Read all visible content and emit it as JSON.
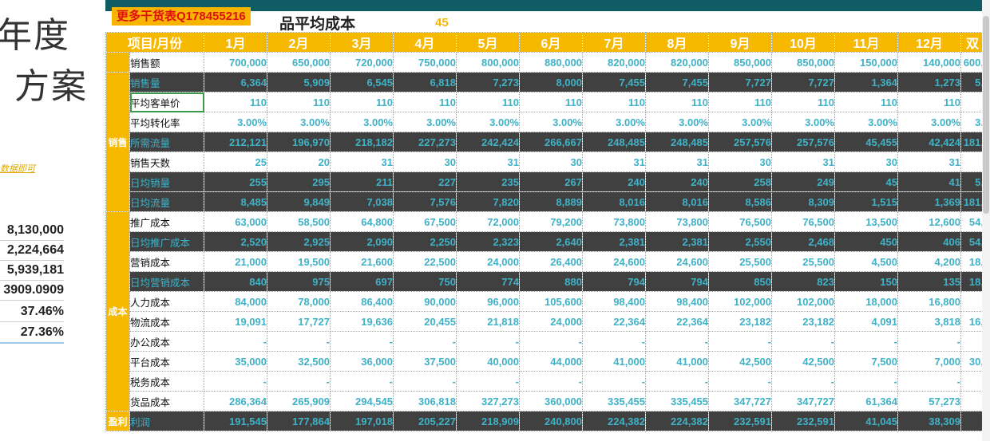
{
  "left_panel": {
    "heading_line1": "年度",
    "heading_line2": "方案",
    "hint": "数据即可",
    "summary_values": [
      "8,130,000",
      "2,224,664",
      "5,939,181",
      "3909.0909",
      "37.46%",
      "27.36%"
    ]
  },
  "sheet": {
    "badge": "更多干货表Q178455216",
    "title": "品平均成本",
    "title_number": "45",
    "header": [
      "项目/月份",
      "1月",
      "2月",
      "3月",
      "4月",
      "5月",
      "6月",
      "7月",
      "8月",
      "9月",
      "10月",
      "11月",
      "12月",
      "双"
    ],
    "categories": {
      "sales": "销售",
      "cost": "成本",
      "profit": "盈利"
    },
    "rows": [
      {
        "label": "销售额",
        "dark": false,
        "cells": [
          "700,000",
          "650,000",
          "720,000",
          "750,000",
          "800,000",
          "880,000",
          "820,000",
          "820,000",
          "850,000",
          "850,000",
          "150,000",
          "140,000",
          "600,"
        ]
      },
      {
        "label": "销售量",
        "dark": true,
        "cells": [
          "6,364",
          "5,909",
          "6,545",
          "6,818",
          "7,273",
          "8,000",
          "7,455",
          "7,455",
          "7,727",
          "7,727",
          "1,364",
          "1,273",
          "5,"
        ]
      },
      {
        "label": "平均客单价",
        "dark": false,
        "cells": [
          "110",
          "110",
          "110",
          "110",
          "110",
          "110",
          "110",
          "110",
          "110",
          "110",
          "110",
          "110",
          ""
        ]
      },
      {
        "label": "平均转化率",
        "dark": false,
        "cells": [
          "3.00%",
          "3.00%",
          "3.00%",
          "3.00%",
          "3.00%",
          "3.00%",
          "3.00%",
          "3.00%",
          "3.00%",
          "3.00%",
          "3.00%",
          "3.00%",
          "3."
        ]
      },
      {
        "label": "所需流量",
        "dark": true,
        "cells": [
          "212,121",
          "196,970",
          "218,182",
          "227,273",
          "242,424",
          "266,667",
          "248,485",
          "248,485",
          "257,576",
          "257,576",
          "45,455",
          "42,424",
          "181,"
        ]
      },
      {
        "label": "销售天数",
        "dark": false,
        "cells": [
          "25",
          "20",
          "31",
          "30",
          "31",
          "30",
          "31",
          "31",
          "30",
          "31",
          "30",
          "31",
          ""
        ]
      },
      {
        "label": "日均销量",
        "dark": true,
        "cells": [
          "255",
          "295",
          "211",
          "227",
          "235",
          "267",
          "240",
          "240",
          "258",
          "249",
          "45",
          "41",
          "5,"
        ]
      },
      {
        "label": "日均流量",
        "dark": true,
        "cells": [
          "8,485",
          "9,849",
          "7,038",
          "7,576",
          "7,820",
          "8,889",
          "8,016",
          "8,016",
          "8,586",
          "8,309",
          "1,515",
          "1,369",
          "181,"
        ]
      },
      {
        "label": "推广成本",
        "dark": false,
        "cells": [
          "63,000",
          "58,500",
          "64,800",
          "67,500",
          "72,000",
          "79,200",
          "73,800",
          "73,800",
          "76,500",
          "76,500",
          "13,500",
          "12,600",
          "54,"
        ]
      },
      {
        "label": "日均推广成本",
        "dark": true,
        "cells": [
          "2,520",
          "2,925",
          "2,090",
          "2,250",
          "2,323",
          "2,640",
          "2,381",
          "2,381",
          "2,550",
          "2,468",
          "450",
          "406",
          "54,"
        ]
      },
      {
        "label": "营销成本",
        "dark": false,
        "cells": [
          "21,000",
          "19,500",
          "21,600",
          "22,500",
          "24,000",
          "26,400",
          "24,600",
          "24,600",
          "25,500",
          "25,500",
          "4,500",
          "4,200",
          "18,"
        ]
      },
      {
        "label": "日均营销成本",
        "dark": true,
        "cells": [
          "840",
          "975",
          "697",
          "750",
          "774",
          "880",
          "794",
          "794",
          "850",
          "823",
          "150",
          "135",
          "18,"
        ]
      },
      {
        "label": "人力成本",
        "dark": false,
        "cells": [
          "84,000",
          "78,000",
          "86,400",
          "90,000",
          "96,000",
          "105,600",
          "98,400",
          "98,400",
          "102,000",
          "102,000",
          "18,000",
          "16,800",
          ""
        ]
      },
      {
        "label": "物流成本",
        "dark": false,
        "cells": [
          "19,091",
          "17,727",
          "19,636",
          "20,455",
          "21,818",
          "24,000",
          "22,364",
          "22,364",
          "23,182",
          "23,182",
          "4,091",
          "3,818",
          "16,"
        ]
      },
      {
        "label": "办公成本",
        "dark": false,
        "cells": [
          "-",
          "-",
          "-",
          "-",
          "-",
          "-",
          "-",
          "-",
          "-",
          "-",
          "-",
          "-",
          ""
        ]
      },
      {
        "label": "平台成本",
        "dark": false,
        "cells": [
          "35,000",
          "32,500",
          "36,000",
          "37,500",
          "40,000",
          "44,000",
          "41,000",
          "41,000",
          "42,500",
          "42,500",
          "7,500",
          "7,000",
          "30,"
        ]
      },
      {
        "label": "税务成本",
        "dark": false,
        "cells": [
          "-",
          "-",
          "-",
          "-",
          "-",
          "-",
          "-",
          "-",
          "-",
          "-",
          "-",
          "-",
          ""
        ]
      },
      {
        "label": "货品成本",
        "dark": false,
        "cells": [
          "286,364",
          "265,909",
          "294,545",
          "306,818",
          "327,273",
          "360,000",
          "335,455",
          "335,455",
          "347,727",
          "347,727",
          "61,364",
          "57,273",
          ""
        ]
      },
      {
        "label": "利润",
        "dark": true,
        "cells": [
          "191,545",
          "177,864",
          "197,018",
          "205,227",
          "218,909",
          "240,800",
          "224,382",
          "224,382",
          "232,591",
          "232,591",
          "41,045",
          "38,309",
          ""
        ]
      }
    ]
  },
  "colors": {
    "header": "#f7b800",
    "dark_row": "#404040",
    "value_text": "#3fb2c7",
    "top_bar": "#0f5c64",
    "badge_text": "#e01010"
  }
}
